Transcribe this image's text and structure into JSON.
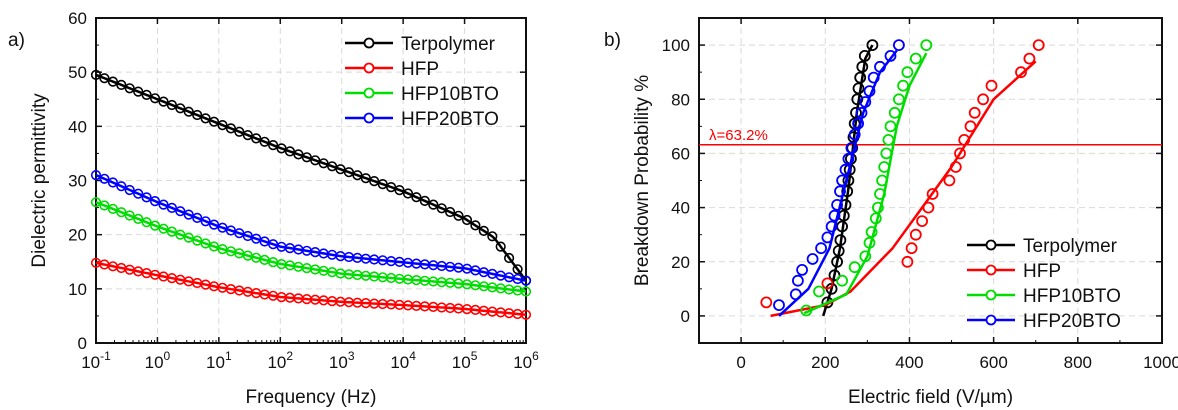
{
  "panels": [
    {
      "label": "a)",
      "type": "line",
      "xlabel": "Frequency (Hz)",
      "ylabel": "Dielectric permittivity",
      "xscale": "log",
      "xlim": [
        0.1,
        1000000
      ],
      "ylim": [
        0,
        60
      ],
      "xticks": [
        {
          "v": 0.1,
          "base": "10",
          "exp": "-1"
        },
        {
          "v": 1,
          "base": "10",
          "exp": "0"
        },
        {
          "v": 10,
          "base": "10",
          "exp": "1"
        },
        {
          "v": 100,
          "base": "10",
          "exp": "2"
        },
        {
          "v": 1000,
          "base": "10",
          "exp": "3"
        },
        {
          "v": 10000,
          "base": "10",
          "exp": "4"
        },
        {
          "v": 100000,
          "base": "10",
          "exp": "5"
        },
        {
          "v": 1000000,
          "base": "10",
          "exp": "6"
        }
      ],
      "yticks": [
        0,
        10,
        20,
        30,
        40,
        50,
        60
      ],
      "grid": true,
      "legend_position": "top-right",
      "series": [
        {
          "name": "Terpolymer",
          "color": "#000000",
          "x": [
            0.1,
            1,
            10,
            100,
            1000,
            10000,
            100000,
            300000,
            1000000
          ],
          "y": [
            49.5,
            45,
            40.5,
            36,
            32,
            28,
            23,
            19.5,
            11.5
          ]
        },
        {
          "name": "HFP",
          "color": "#ff0000",
          "x": [
            0.1,
            1,
            10,
            100,
            1000,
            10000,
            100000,
            1000000
          ],
          "y": [
            14.8,
            12.5,
            10.3,
            8.5,
            7.6,
            7.0,
            6.3,
            5.2
          ]
        },
        {
          "name": "HFP10BTO",
          "color": "#00dd00",
          "x": [
            0.1,
            1,
            10,
            100,
            1000,
            10000,
            100000,
            1000000
          ],
          "y": [
            26,
            21.5,
            17.5,
            14.6,
            12.8,
            11.8,
            10.9,
            9.5
          ]
        },
        {
          "name": "HFP20BTO",
          "color": "#0000ff",
          "x": [
            0.1,
            1,
            10,
            100,
            1000,
            10000,
            100000,
            1000000
          ],
          "y": [
            31,
            26,
            21.5,
            17.8,
            16,
            14.9,
            13.8,
            11.5
          ]
        }
      ]
    },
    {
      "label": "b)",
      "type": "scatter",
      "xlabel": "Electric field (V/µm)",
      "ylabel": "Breakdown Probability %",
      "xlim": [
        -100,
        1000
      ],
      "ylim": [
        -10,
        110
      ],
      "xticks": [
        0,
        200,
        400,
        600,
        800,
        1000
      ],
      "yticks": [
        0,
        20,
        40,
        60,
        80,
        100
      ],
      "grid": true,
      "legend_position": "bottom-right",
      "reference_line": {
        "y": 63.2,
        "label": "λ=63.2%",
        "color": "#ff0000"
      },
      "series": [
        {
          "name": "Terpolymer",
          "color": "#000000",
          "points": [
            [
              205,
              5
            ],
            [
              215,
              10
            ],
            [
              222,
              15
            ],
            [
              228,
              20
            ],
            [
              232,
              24
            ],
            [
              236,
              28
            ],
            [
              240,
              33
            ],
            [
              244,
              37
            ],
            [
              248,
              41
            ],
            [
              252,
              46
            ],
            [
              255,
              50
            ],
            [
              258,
              54
            ],
            [
              261,
              58
            ],
            [
              264,
              62
            ],
            [
              267,
              66
            ],
            [
              270,
              71
            ],
            [
              273,
              75
            ],
            [
              276,
              80
            ],
            [
              279,
              84
            ],
            [
              283,
              88
            ],
            [
              288,
              92
            ],
            [
              294,
              96
            ],
            [
              312,
              100
            ]
          ],
          "fit": [
            [
              195,
              0
            ],
            [
              215,
              10
            ],
            [
              235,
              25
            ],
            [
              255,
              47
            ],
            [
              275,
              75
            ],
            [
              295,
              95
            ],
            [
              312,
              100
            ]
          ]
        },
        {
          "name": "HFP",
          "color": "#ff0000",
          "points": [
            [
              60,
              5
            ],
            [
              205,
              12
            ],
            [
              395,
              20
            ],
            [
              405,
              25
            ],
            [
              415,
              30
            ],
            [
              430,
              35
            ],
            [
              445,
              40
            ],
            [
              455,
              45
            ],
            [
              495,
              50
            ],
            [
              510,
              55
            ],
            [
              520,
              60
            ],
            [
              530,
              65
            ],
            [
              545,
              70
            ],
            [
              555,
              75
            ],
            [
              575,
              80
            ],
            [
              595,
              85
            ],
            [
              665,
              90
            ],
            [
              685,
              95
            ],
            [
              707,
              100
            ]
          ],
          "fit": [
            [
              70,
              0
            ],
            [
              200,
              4
            ],
            [
              260,
              9
            ],
            [
              360,
              25
            ],
            [
              430,
              40
            ],
            [
              500,
              55
            ],
            [
              560,
              70
            ],
            [
              600,
              80
            ],
            [
              700,
              94
            ]
          ]
        },
        {
          "name": "HFP10BTO",
          "color": "#00dd00",
          "points": [
            [
              155,
              2
            ],
            [
              185,
              9
            ],
            [
              240,
              13
            ],
            [
              270,
              18
            ],
            [
              295,
              22
            ],
            [
              305,
              27
            ],
            [
              310,
              31
            ],
            [
              320,
              36
            ],
            [
              325,
              40
            ],
            [
              330,
              45
            ],
            [
              335,
              50
            ],
            [
              340,
              55
            ],
            [
              345,
              60
            ],
            [
              350,
              65
            ],
            [
              355,
              70
            ],
            [
              365,
              75
            ],
            [
              375,
              80
            ],
            [
              385,
              85
            ],
            [
              395,
              90
            ],
            [
              415,
              95
            ],
            [
              440,
              100
            ]
          ],
          "fit": [
            [
              150,
              1
            ],
            [
              250,
              8
            ],
            [
              300,
              22
            ],
            [
              340,
              45
            ],
            [
              370,
              70
            ],
            [
              400,
              85
            ],
            [
              440,
              97
            ]
          ]
        },
        {
          "name": "HFP20BTO",
          "color": "#0000ff",
          "points": [
            [
              90,
              4
            ],
            [
              130,
              8
            ],
            [
              135,
              13
            ],
            [
              145,
              17
            ],
            [
              170,
              21
            ],
            [
              190,
              25
            ],
            [
              205,
              29
            ],
            [
              215,
              33
            ],
            [
              222,
              37
            ],
            [
              228,
              41
            ],
            [
              235,
              46
            ],
            [
              240,
              50
            ],
            [
              248,
              54
            ],
            [
              255,
              58
            ],
            [
              262,
              62
            ],
            [
              270,
              67
            ],
            [
              278,
              71
            ],
            [
              286,
              75
            ],
            [
              295,
              79
            ],
            [
              305,
              83
            ],
            [
              315,
              88
            ],
            [
              330,
              92
            ],
            [
              355,
              96
            ],
            [
              375,
              100
            ]
          ],
          "fit": [
            [
              90,
              0
            ],
            [
              160,
              10
            ],
            [
              210,
              25
            ],
            [
              250,
              50
            ],
            [
              290,
              75
            ],
            [
              330,
              90
            ],
            [
              370,
              98
            ]
          ]
        }
      ]
    }
  ]
}
